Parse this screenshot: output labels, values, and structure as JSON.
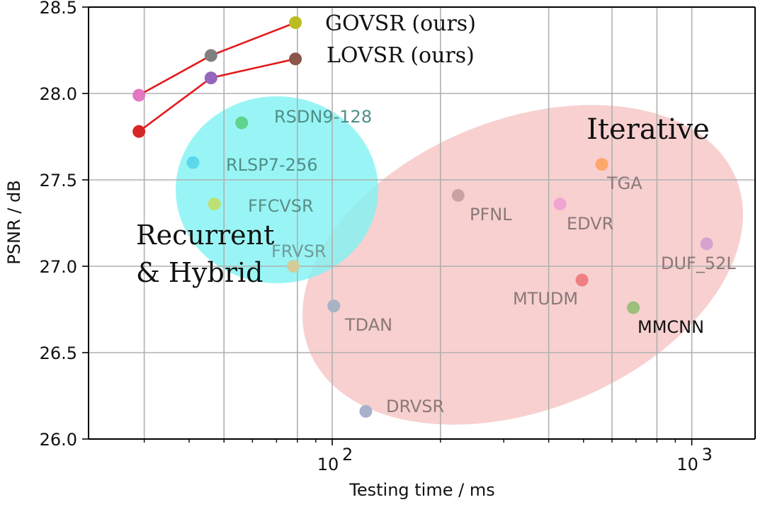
{
  "chart_data": {
    "type": "scatter",
    "xscale": "log",
    "xlabel": "Testing time / ms",
    "ylabel": "PSNR / dB",
    "xlim": [
      21,
      1500
    ],
    "ylim": [
      26.0,
      28.5
    ],
    "grid": true,
    "x_major_ticks": [
      {
        "value": 100,
        "base": "10",
        "exp": "2"
      },
      {
        "value": 1000,
        "base": "10",
        "exp": "3"
      }
    ],
    "x_minor_ticks": [
      30,
      40,
      50,
      60,
      70,
      80,
      90,
      200,
      300,
      400,
      500,
      600,
      700,
      800,
      900
    ],
    "y_ticks": [
      "26.0",
      "26.5",
      "27.0",
      "27.5",
      "28.0",
      "28.5"
    ],
    "region_labels": [
      {
        "lines": [
          "Iterative"
        ]
      },
      {
        "lines": [
          "Recurrent",
          "& Hybrid"
        ]
      }
    ],
    "series": [
      {
        "name": "GOVSR (ours)",
        "color": "#e31a1c",
        "points": [
          {
            "x": 29,
            "y": 27.99,
            "color": "#e377c2"
          },
          {
            "x": 46,
            "y": 28.22,
            "color": "#7f7f7f"
          },
          {
            "x": 79,
            "y": 28.41,
            "color": "#bcbd22"
          }
        ]
      },
      {
        "name": "LOVSR (ours)",
        "color": "#e31a1c",
        "points": [
          {
            "x": 29,
            "y": 27.78,
            "color": "#d62728"
          },
          {
            "x": 46,
            "y": 28.09,
            "color": "#9467bd"
          },
          {
            "x": 79,
            "y": 28.2,
            "color": "#8c564b"
          }
        ]
      }
    ],
    "methods": [
      {
        "name": "RSDN9-128",
        "x": 56,
        "y": 27.83,
        "color": "#5fd38d"
      },
      {
        "name": "RLSP7-256",
        "x": 41,
        "y": 27.6,
        "color": "#5bd8ec"
      },
      {
        "name": "FFCVSR",
        "x": 47,
        "y": 27.36,
        "color": "#bde075"
      },
      {
        "name": "FRVSR",
        "x": 78,
        "y": 27.0,
        "color": "#d2cc9a"
      },
      {
        "name": "TGA",
        "x": 562,
        "y": 27.59,
        "color": "#ffa76a"
      },
      {
        "name": "PFNL",
        "x": 224,
        "y": 27.41,
        "color": "#c9a3a3"
      },
      {
        "name": "EDVR",
        "x": 430,
        "y": 27.36,
        "color": "#f0a6d0"
      },
      {
        "name": "DUF_52L",
        "x": 1100,
        "y": 27.13,
        "color": "#d6a3d0"
      },
      {
        "name": "MTUDM",
        "x": 495,
        "y": 26.92,
        "color": "#ef7f80"
      },
      {
        "name": "MMCNN",
        "x": 688,
        "y": 26.76,
        "color": "#9cbf7c"
      },
      {
        "name": "TDAN",
        "x": 101,
        "y": 26.77,
        "color": "#a8b3c4"
      },
      {
        "name": "DRVSR",
        "x": 124,
        "y": 26.16,
        "color": "#a8b0cc"
      }
    ]
  }
}
